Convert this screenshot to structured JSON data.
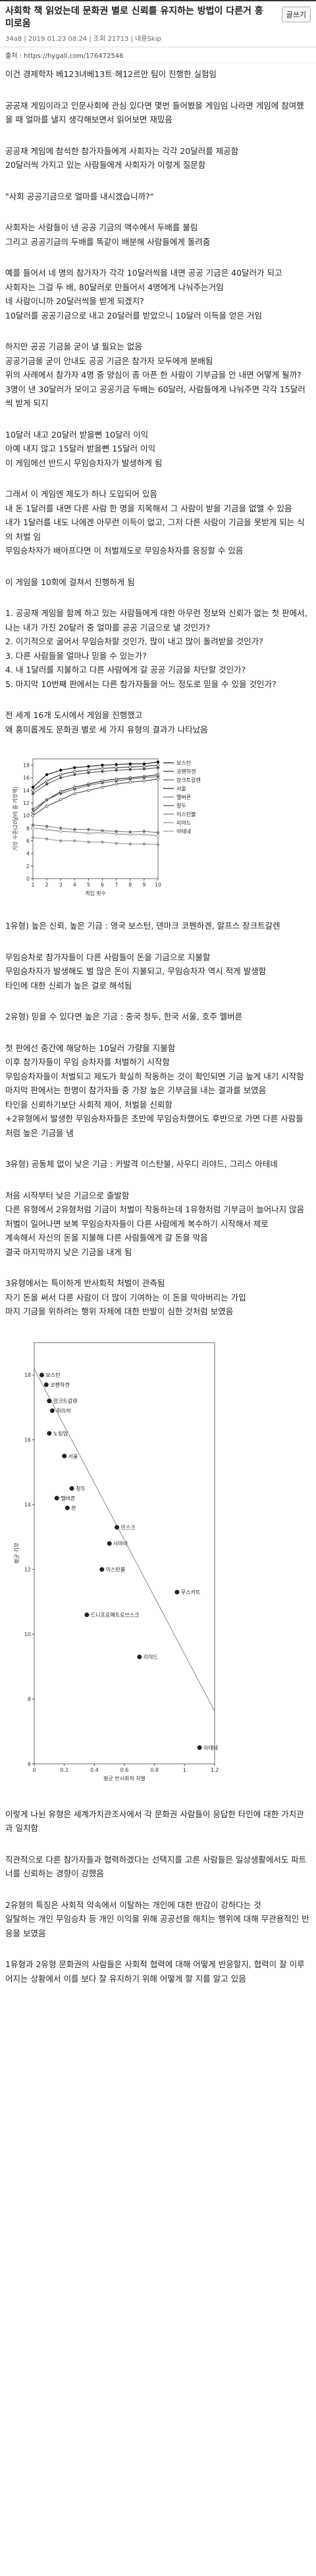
{
  "header": {
    "title": "사회학 책 읽었는데 문화권 별로 신뢰를 유지하는 방법이 다른거 흥미로움",
    "button": "글쓰기",
    "meta": "34a8 | 2019.01.23 08:24 | 조회 21713 | 내용Skip",
    "source": "출처 : https://hygall.com/176472546"
  },
  "blocks": [
    {
      "text": "이건 경제학자 베123녀베13트 헤12르만 팀이 진행한 실험임"
    },
    {
      "text": "공공재 게임이라고 인문사회에 관심 있다면 몇번 들어봤을 게임임 나라면 게임에 참여했을 때 얼마를 낼지 생각해보면서 읽어보면 재밌음"
    },
    {
      "text": "공공재 게임에 참석한 참가자들에게 사회자는 각각 20달러를 제공함\n20달러씩 가지고 있는 사람들에게 사회자가 이렇게 질문함"
    },
    {
      "text": "\"사회 공공기금으로 얼마를 내시겠습니까?\""
    },
    {
      "text": "사회자는 사람들이 낸 공공 기금의 액수에서 두배를 불림\n그리고 공공기금의 두배를 똑같이 배분해 사람들에게 돌려줌"
    },
    {
      "text": "예를 들어서 네 명의 참가자가 각각 10달러씩을 내면 공공 기금은 40달러가 되고\n사회자는 그걸 두 배, 80달러로 만들어서 4명에게 나눠주는거임\n네 사람이니까 20달러씩을 받게 되겠지?\n10달러를 공공기금으로 내고 20달러를 받았으니 10달러 이득을 얻은 거임"
    },
    {
      "text": "하지만 공공 기금을 굳이 낼 필요는 없음\n공공기금을 굳이 안내도 공공 기금은 참가자 모두에게 분배됨\n위의 사례에서 참가자 4명 중 양심이 좀 아픈 한 사람이 기부금을 안 내면 어떻게 될까?\n3명이 낸 30달러가 모이고 공공기금 두배는 60달러, 사람들에게 나눠주면 각각 15달러씩 받게 되지"
    },
    {
      "text": "10달러 내고 20달러 받을뻔 10달러 이익\n아예 내지 않고 15달러 받을뻔 15달러 이익\n이 게임에선 반드시 무임승차자가 발생하게 됨"
    },
    {
      "text": "그래서 이 게임엔 제도가 하나 도입되어 있음\n내 돈 1달러를 내면 다른 사람 한 명을 지목해서 그 사람이 받을 기금을 없앨 수 있음\n내가 1달러를 내도 나에겐 아무런 이득이 없고, 그저 다른 사람이 기금을 못받게 되는 식의 처벌 임\n무임승차자가 배아프다면 이 처벌제도로 무임승차자를 응징할 수 있음"
    },
    {
      "text": "이 게임을 10회에 걸쳐서 진행하게 됨"
    },
    {
      "text": "1. 공공재 게임을 함께 하고 있는 사람들에게 대한 아무런 정보와 신뢰가 없는 첫 판에서, 나는 내가 가진 20달러 중 얼마를 공공 기금으로 낼 것인가?\n2. 이기적으로 굴어서 무임승차할 것인가, 많이 내고 많이 돌려받을 것인가?\n3. 다른 사람들을 얼마나 믿을 수 있는가?\n4. 내 1달러를 지불하고 다른 사람에게 갈 공공 기금을 차단할 것인가?\n5. 마지막 10번째 판에서는 다른 참가자들을 어느 정도로 믿을 수 있을 것인가?"
    },
    {
      "text": "전 세계 16개 도시에서 게임을 진행했고\n왜 흥미롭게도 문화권 별로 세 가지 유형의 결과가 나타났음"
    },
    {
      "chart_data": {
        "type": "line",
        "y_label": "기부 수준(20달러 중 기부액)",
        "x_label": "게임 횟수",
        "x": [
          1,
          2,
          3,
          4,
          5,
          6,
          7,
          8,
          9,
          10
        ],
        "xlim": [
          1,
          10
        ],
        "xticks": [
          1,
          2,
          3,
          4,
          5,
          6,
          7,
          8,
          9,
          10
        ],
        "ylim": [
          0,
          19
        ],
        "yticks": [
          0,
          2,
          4,
          6,
          8,
          10,
          12,
          14,
          16,
          18
        ],
        "series": [
          {
            "name": "보스턴",
            "color": "#111111",
            "values": [
              14.5,
              16.5,
              17.2,
              17.6,
              17.8,
              18,
              18.1,
              18.2,
              18.2,
              18.5
            ]
          },
          {
            "name": "코펜하겐",
            "color": "#333333",
            "values": [
              14,
              15.5,
              16.5,
              17,
              17.2,
              17.5,
              17.6,
              17.7,
              17.8,
              18
            ]
          },
          {
            "name": "장크트갈렌",
            "color": "#555555",
            "values": [
              13.5,
              15,
              16,
              16.5,
              16.8,
              17,
              17.2,
              17.3,
              17.4,
              17.6
            ]
          },
          {
            "name": "서울",
            "color": "#222222",
            "values": [
              10.5,
              12.5,
              13.8,
              14.5,
              15,
              15.5,
              15.8,
              16,
              16.2,
              16.5
            ]
          },
          {
            "name": "멜버른",
            "color": "#666666",
            "values": [
              11,
              12.5,
              13.5,
              14.2,
              14.8,
              15.2,
              15.5,
              15.8,
              16,
              16.2
            ]
          },
          {
            "name": "청두",
            "color": "#444444",
            "values": [
              10,
              11.5,
              12.5,
              13.5,
              14,
              14.5,
              15,
              15.3,
              15.5,
              15.8
            ]
          },
          {
            "name": "이스탄불",
            "color": "#777777",
            "values": [
              8.5,
              8.3,
              8,
              7.8,
              7.8,
              7.6,
              7.5,
              7.4,
              7.5,
              7.3
            ]
          },
          {
            "name": "리야드",
            "color": "#888888",
            "values": [
              8,
              7.8,
              7.5,
              7.4,
              7.2,
              7.3,
              7.1,
              7,
              7,
              6.8
            ]
          },
          {
            "name": "아테네",
            "color": "#999999",
            "values": [
              6.5,
              6.3,
              6,
              6,
              5.8,
              5.8,
              5.6,
              5.5,
              5.5,
              5.4
            ]
          }
        ]
      }
    },
    {
      "text": "1유형) 높은 신뢰, 높은 기금 : 영국 보스턴, 덴마크 코펜하겐, 알프스 장크트갈렌"
    },
    {
      "text": "무임승차로 참가자들이 다른 사람들이 돈을 기금으로 지불할\n무임승차자가 발생해도 벌 많은 돈이 지불되고, 무임승차자 역시 적게 발생함\n타인에 대한 신뢰가 높은 걸로 해석됨"
    },
    {
      "text": "2유형) 믿을 수 있다면 높은 기금 : 중국 청두, 한국 서울, 호주 멜버른"
    },
    {
      "text": "첫 판에선 중간에 해당하는 10달러 가량을 지불함\n이후 참가자들이 무임 승차자를 처벌하기 시작함\n무임승차자들이 처벌되고 제도가 확실히 작동하는 것이 확인되면 기금 높게 내기 시작함\n마지막 판에서는 한명이 참가자들 중 가장 높은 기부금을 내는 결과를 보였음\n타인을 신뢰하기보단 사회적 제어, 처벌을 신뢰함\n+2유형에서 발생한 무임승차자들은 초반에 무임승차했어도 후반으로 가면 다른 사람들처럼 높은 기금을 냄"
    },
    {
      "text": "3유형) 공동체 없이 낮은 기금 : 카발격 이스탄불, 사우디 리야드, 그리스 아테네"
    },
    {
      "text": "처음 시작부터 낮은 기금으로 출발함\n다른 유형에서 2유형처럼 기금이 처벌이 작동하는데 1유형처럼 기부금이 늘어나지 않음\n처벌이 일어나면 보복 무임승차자들이 다른 사람에게 복수하기 시작해서 제로\n계속해서 자신의 돈을 지불해 다른 사람들에게 갈 돈을 막음\n결국 마지막까지 낮은 기금을 내게 됨"
    },
    {
      "text": "3유형에서는 특이하게 반사회적 처벌이 관측됨\n자기 돈을 써서 다른 사람이 더 많이 기여하는 이 돈을 막아버리는 가입\n마지 기금을 위하려는 행위 자체에 대한 반발이 심한 것처럼 보였음"
    },
    {
      "chart_data": {
        "type": "scatter",
        "x_label": "평균 반사회적 처벌",
        "y_label": "평균 기부",
        "labels": [
          "보스턴",
          "코펜하겐",
          "장크트갈렌",
          "취리히",
          "노팅엄",
          "서울",
          "청두",
          "멜버른",
          "본",
          "민스크",
          "사마라",
          "이스탄불",
          "드니프로페트로브스크",
          "무스카트",
          "리야드",
          "아테네"
        ],
        "x": [
          0.05,
          0.08,
          0.1,
          0.12,
          0.1,
          0.2,
          0.25,
          0.15,
          0.22,
          0.55,
          0.5,
          0.45,
          0.35,
          0.95,
          0.7,
          1.1
        ],
        "values": [
          18,
          17.7,
          17.2,
          16.9,
          16.2,
          15.5,
          14.5,
          14.2,
          13.9,
          13.3,
          12.8,
          12,
          10.6,
          11.3,
          9.3,
          6.5
        ],
        "color": "#222222",
        "xlim": [
          0,
          1.2
        ],
        "xticks": [
          0,
          0.2,
          0.4,
          0.6,
          0.8,
          1,
          1.2
        ],
        "ylim": [
          6,
          19
        ],
        "yticks": [
          6,
          8,
          10,
          12,
          14,
          16,
          18
        ]
      }
    },
    {
      "text": "이렇게 나뉜 유형은 세계가치관조사에서 각 문화권 사람들이 응답한 타인에 대한 가치관과 일치함"
    },
    {
      "text": "직관적으로 다른 참가자들과 협력하겠다는 선택지를 고른 사람들은 일상생활에서도 파트너를 신뢰하는 경향이 강했음"
    },
    {
      "text": "2유형의 특징은 사회적 약속에서 이탈하는 개인에 대한 반감이 강하다는 것\n일탈하는 개인 무임승차 등 개인 이익을 위해 공공선을 해치는 행위에 대해 무관용적인 반응을 보였음"
    },
    {
      "text": "1유형과 2유형 문화권의 사람들은 사회적 협력에 대해 어떻게 반응할지, 협력이 잘 이루어지는 상황에서 이를 보다 잘 유지하기 위해 어떻게 할 지를 알고 있음"
    }
  ]
}
